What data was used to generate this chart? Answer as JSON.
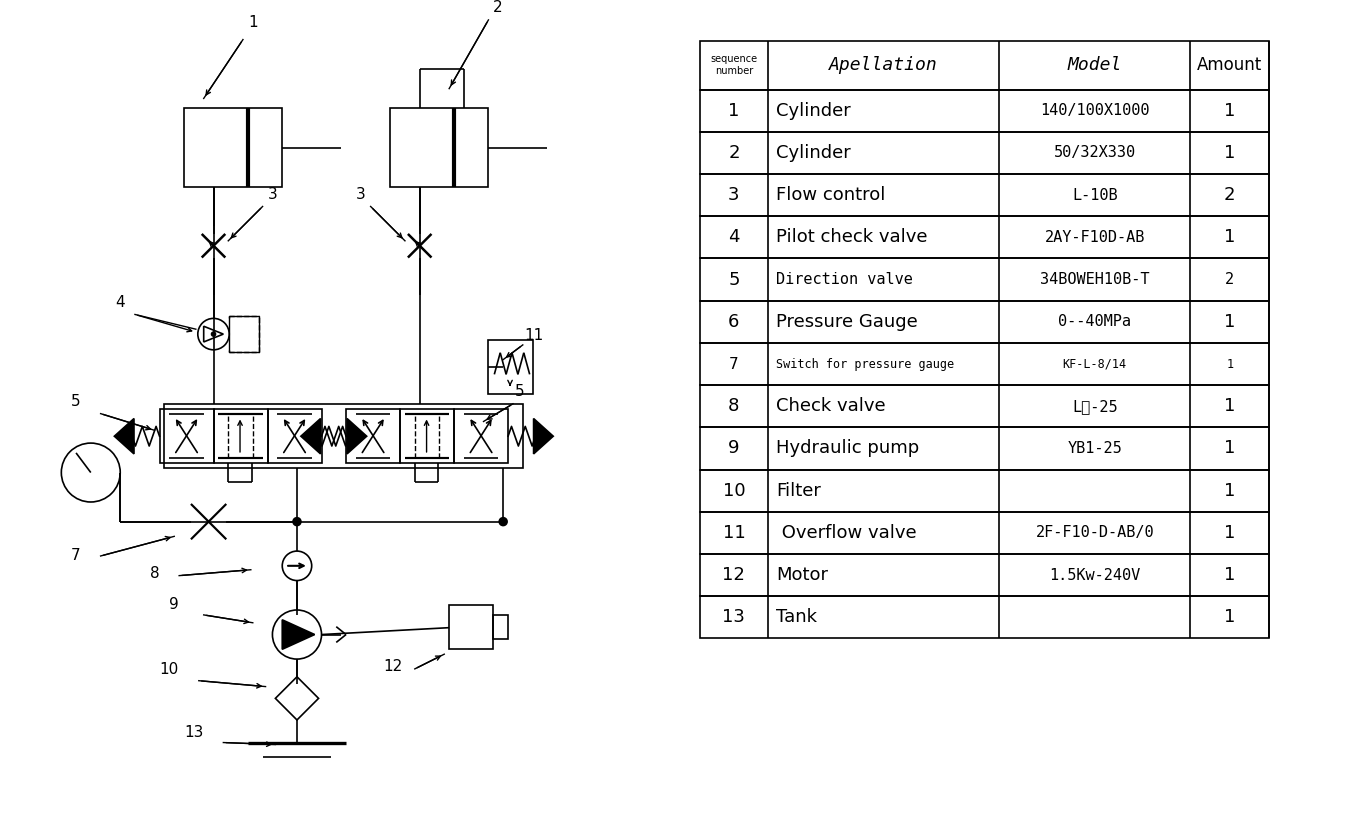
{
  "bg_color": "#ffffff",
  "line_color": "#000000",
  "table_headers": [
    "sequence\nnumber",
    "Apellation",
    "Model",
    "Amount"
  ],
  "table_rows": [
    [
      "1",
      "Cylinder",
      "140/100X1000",
      "1"
    ],
    [
      "2",
      "Cylinder",
      "50/32X330",
      "1"
    ],
    [
      "3",
      "Flow control",
      "L-10B",
      "2"
    ],
    [
      "4",
      "Pilot check valve",
      "2AY-F10D-AB",
      "1"
    ],
    [
      "5",
      "Direction valve",
      "34BOWEH10B-T",
      "2"
    ],
    [
      "6",
      "Pressure Gauge",
      "0--40MPa",
      "1"
    ],
    [
      "7",
      "Switch for pressure gauge",
      "KF-L-8/14",
      "1"
    ],
    [
      "8",
      "Check valve",
      "L型-25",
      "1"
    ],
    [
      "9",
      "Hydraulic pump",
      "YB1-25",
      "1"
    ],
    [
      "10",
      "Filter",
      "",
      "1"
    ],
    [
      "11",
      " Overflow valve",
      "2F-F10-D-AB/0",
      "1"
    ],
    [
      "12",
      "Motor",
      "1.5Kw-240V",
      "1"
    ],
    [
      "13",
      "Tank",
      "",
      "1"
    ]
  ],
  "notes": {
    "row7_small": true,
    "row5_italic": true
  }
}
